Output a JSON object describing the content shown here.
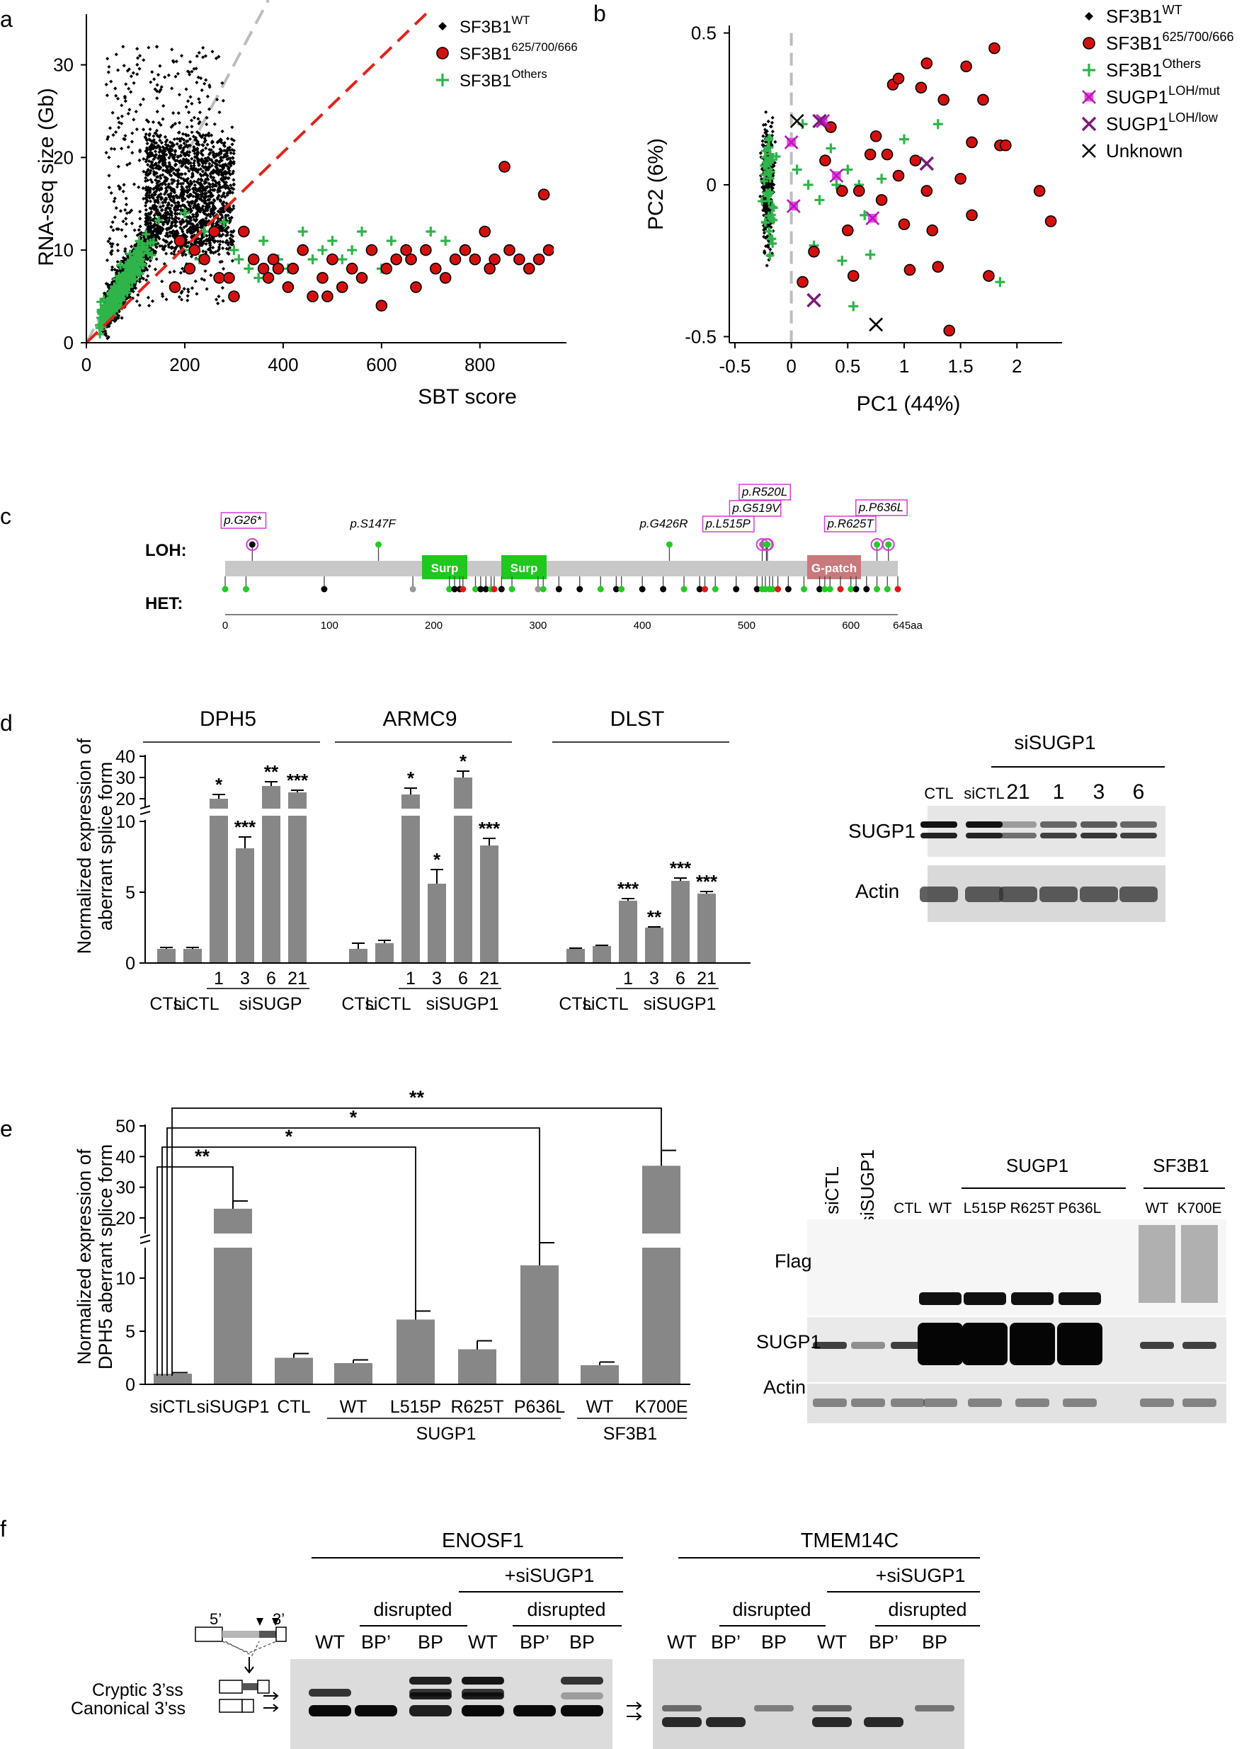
{
  "panels": {
    "a": {
      "letter": "a",
      "xlabel": "SBT score",
      "ylabel": "RNA-seq size (Gb)",
      "xticks": [
        "0",
        "200",
        "400",
        "600",
        "800"
      ],
      "yticks": [
        "0",
        "10",
        "20",
        "30"
      ],
      "legend": [
        {
          "base": "SF3B1",
          "sup": "WT",
          "marker": "diamond"
        },
        {
          "base": "SF3B1",
          "sup": "625/700/666",
          "marker": "circle"
        },
        {
          "base": "SF3B1",
          "sup": "Others",
          "marker": "plus"
        }
      ]
    },
    "b": {
      "letter": "b",
      "xlabel": "PC1 (44%)",
      "ylabel": "PC2 (6%)",
      "xticks": [
        "-0.5",
        "0",
        "0.5",
        "1",
        "1.5",
        "2"
      ],
      "yticks": [
        "-0.5",
        "0",
        "0.5"
      ],
      "legend": [
        {
          "base": "SF3B1",
          "sup": "WT",
          "marker": "diamond"
        },
        {
          "base": "SF3B1",
          "sup": "625/700/666",
          "marker": "circle"
        },
        {
          "base": "SF3B1",
          "sup": "Others",
          "marker": "plus"
        },
        {
          "base": "SUGP1",
          "sup": "LOH/mut",
          "marker": "xsq-magenta"
        },
        {
          "base": "SUGP1",
          "sup": "LOH/low",
          "marker": "x-purple"
        },
        {
          "base": "Unknown",
          "sup": "",
          "marker": "x-black"
        }
      ]
    },
    "c": {
      "letter": "c",
      "row_loh": "LOH:",
      "row_het": "HET:",
      "domains": [
        "Surp",
        "Surp",
        "G-patch"
      ],
      "axis_ticks": [
        "0",
        "100",
        "200",
        "300",
        "400",
        "500",
        "600",
        "645aa"
      ],
      "mutations": [
        "p.G26*",
        "p.S147F",
        "p.G426R",
        "p.L515P",
        "p.R520L",
        "p.G519V",
        "p.R625T",
        "p.P636L"
      ]
    },
    "d": {
      "letter": "d",
      "ylabel_1": "Normalized  expression of",
      "ylabel_2": "aberrant splice form",
      "yticks_low": [
        "0",
        "5",
        "10"
      ],
      "yticks_high": [
        "20",
        "30",
        "40"
      ],
      "genes": [
        "DPH5",
        "ARMC9",
        "DLST"
      ],
      "sublabels": [
        "1",
        "3",
        "6",
        "21"
      ],
      "group_labels": [
        "CTL",
        "siCTL",
        "siSUGP",
        "CTL",
        "siCTL",
        "siSUGP1",
        "CTL",
        "siCTL",
        "siSUGP1"
      ],
      "stars": [
        "*",
        "***",
        "**",
        "***",
        "*",
        "*",
        "*",
        "***",
        "***",
        "**",
        "***",
        "***"
      ],
      "blot_header": "siSUGP1",
      "blot_lanes": [
        "CTL",
        "siCTL",
        "21",
        "1",
        "3",
        "6"
      ],
      "blot_rows": [
        "SUGP1",
        "Actin"
      ]
    },
    "e": {
      "letter": "e",
      "ylabel_1": "Normalized  expression of",
      "ylabel_2": "DPH5 aberrant splice form",
      "yticks_low": [
        "0",
        "5",
        "10"
      ],
      "yticks_high": [
        "20",
        "30",
        "40",
        "50"
      ],
      "bar_labels": [
        "siCTL",
        "siSUGP1",
        "CTL",
        "WT",
        "L515P",
        "R625T",
        "P636L",
        "WT",
        "K700E"
      ],
      "group_sugp1": "SUGP1",
      "group_sf3b1": "SF3B1",
      "sig": [
        "**",
        "*",
        "*",
        "**"
      ],
      "blot_lanes_rot": [
        "siCTL",
        "siSUGP1"
      ],
      "blot_lanes": [
        "CTL",
        "WT",
        "L515P",
        "R625T",
        "P636L",
        "WT",
        "K700E"
      ],
      "blot_group_1": "SUGP1",
      "blot_group_2": "SF3B1",
      "blot_rows": [
        "Flag",
        "SUGP1",
        "Actin"
      ]
    },
    "f": {
      "letter": "f",
      "gene_1": "ENOSF1",
      "gene_2": "TMEM14C",
      "plus_label": "+siSUGP1",
      "disrupted": "disrupted",
      "lanes": [
        "WT",
        "BP’",
        "BP",
        "WT",
        "BP’",
        "BP"
      ],
      "five": "5’",
      "three": "3’",
      "cryptic": "Cryptic 3’ss",
      "canonical": "Canonical 3’ss"
    }
  },
  "chart_data": [
    {
      "id": "a",
      "type": "scatter",
      "title": "",
      "xlabel": "SBT score",
      "ylabel": "RNA-seq size (Gb)",
      "xlim": [
        0,
        950
      ],
      "ylim": [
        0,
        37
      ],
      "series": [
        {
          "name": "SF3B1 WT",
          "marker": "diamond",
          "color": "#000000",
          "n_points": 4200,
          "description_points": [
            [
              100,
              10
            ],
            [
              150,
              14
            ],
            [
              200,
              18
            ],
            [
              250,
              20
            ],
            [
              300,
              12
            ]
          ]
        },
        {
          "name": "SF3B1 625/700/666",
          "marker": "circle",
          "color": "#d4100f",
          "points": [
            [
              180,
              6
            ],
            [
              190,
              11
            ],
            [
              210,
              8
            ],
            [
              220,
              10
            ],
            [
              240,
              9
            ],
            [
              260,
              12
            ],
            [
              270,
              7
            ],
            [
              290,
              7
            ],
            [
              300,
              5
            ],
            [
              320,
              12
            ],
            [
              340,
              9
            ],
            [
              360,
              8
            ],
            [
              370,
              7
            ],
            [
              380,
              9
            ],
            [
              390,
              8
            ],
            [
              410,
              6
            ],
            [
              420,
              8
            ],
            [
              440,
              10
            ],
            [
              460,
              5
            ],
            [
              480,
              7
            ],
            [
              490,
              5
            ],
            [
              500,
              9
            ],
            [
              520,
              6
            ],
            [
              540,
              8
            ],
            [
              560,
              7
            ],
            [
              580,
              10
            ],
            [
              600,
              4
            ],
            [
              610,
              8
            ],
            [
              630,
              9
            ],
            [
              650,
              10
            ],
            [
              660,
              9
            ],
            [
              670,
              6
            ],
            [
              690,
              10
            ],
            [
              710,
              8
            ],
            [
              730,
              7
            ],
            [
              750,
              9
            ],
            [
              770,
              10
            ],
            [
              790,
              9
            ],
            [
              810,
              12
            ],
            [
              820,
              8
            ],
            [
              830,
              9
            ],
            [
              850,
              19
            ],
            [
              860,
              10
            ],
            [
              880,
              9
            ],
            [
              900,
              8
            ],
            [
              920,
              9
            ],
            [
              930,
              16
            ],
            [
              940,
              10
            ]
          ]
        },
        {
          "name": "SF3B1 Others",
          "marker": "plus",
          "color": "#2fb44a",
          "points": [
            [
              200,
              14
            ],
            [
              210,
              10
            ],
            [
              230,
              9
            ],
            [
              240,
              12
            ],
            [
              280,
              13
            ],
            [
              300,
              10
            ],
            [
              310,
              9
            ],
            [
              330,
              8
            ],
            [
              350,
              7
            ],
            [
              360,
              11
            ],
            [
              390,
              9
            ],
            [
              410,
              8
            ],
            [
              440,
              12
            ],
            [
              460,
              9
            ],
            [
              480,
              10
            ],
            [
              500,
              11
            ],
            [
              520,
              9
            ],
            [
              540,
              10
            ],
            [
              560,
              12
            ],
            [
              600,
              8
            ],
            [
              620,
              11
            ],
            [
              700,
              12
            ],
            [
              730,
              11
            ]
          ]
        }
      ],
      "reference_lines": [
        {
          "slope": 0.1,
          "style": "dashed",
          "color": "#b8b8b8"
        },
        {
          "slope": 0.075,
          "style": "dashed",
          "color": "#e2231a"
        }
      ]
    },
    {
      "id": "b",
      "type": "scatter",
      "title": "",
      "xlabel": "PC1 (44%)",
      "ylabel": "PC2 (6%)",
      "xlim": [
        -0.55,
        2.4
      ],
      "ylim": [
        -0.52,
        0.52
      ],
      "series": [
        {
          "name": "SF3B1 WT",
          "marker": "diamond",
          "color": "#000000",
          "n_points": 420,
          "x_range": [
            -0.3,
            -0.1
          ]
        },
        {
          "name": "SF3B1 625/700/666",
          "marker": "circle",
          "color": "#d4100f",
          "points": [
            [
              0.1,
              -0.32
            ],
            [
              0.2,
              -0.22
            ],
            [
              0.3,
              0.08
            ],
            [
              0.35,
              0.19
            ],
            [
              0.45,
              -0.02
            ],
            [
              0.5,
              -0.15
            ],
            [
              0.55,
              -0.3
            ],
            [
              0.6,
              -0.02
            ],
            [
              0.7,
              0.1
            ],
            [
              0.75,
              0.16
            ],
            [
              0.8,
              -0.05
            ],
            [
              0.85,
              0.1
            ],
            [
              0.9,
              0.33
            ],
            [
              0.95,
              0.03
            ],
            [
              1.0,
              -0.13
            ],
            [
              1.05,
              -0.28
            ],
            [
              1.1,
              0.08
            ],
            [
              1.15,
              0.32
            ],
            [
              1.2,
              -0.02
            ],
            [
              1.25,
              -0.15
            ],
            [
              1.3,
              -0.27
            ],
            [
              1.35,
              0.28
            ],
            [
              1.4,
              -0.48
            ],
            [
              1.5,
              0.02
            ],
            [
              1.55,
              0.39
            ],
            [
              1.6,
              -0.1
            ],
            [
              1.7,
              0.28
            ],
            [
              1.75,
              -0.3
            ],
            [
              1.8,
              0.45
            ],
            [
              1.85,
              0.13
            ],
            [
              1.9,
              0.13
            ],
            [
              2.2,
              -0.02
            ],
            [
              2.3,
              -0.12
            ],
            [
              0.95,
              0.35
            ],
            [
              1.2,
              0.4
            ],
            [
              1.6,
              0.14
            ]
          ]
        },
        {
          "name": "SF3B1 Others",
          "marker": "plus",
          "color": "#2fb44a",
          "points": [
            [
              0.05,
              0.05
            ],
            [
              0.15,
              0.0
            ],
            [
              0.25,
              -0.05
            ],
            [
              0.35,
              0.12
            ],
            [
              0.4,
              0.0
            ],
            [
              0.45,
              -0.25
            ],
            [
              0.5,
              0.05
            ],
            [
              0.6,
              0.0
            ],
            [
              0.65,
              -0.1
            ],
            [
              0.7,
              -0.23
            ],
            [
              0.8,
              0.02
            ],
            [
              1.0,
              0.15
            ],
            [
              1.3,
              0.2
            ],
            [
              1.85,
              -0.32
            ],
            [
              0.2,
              -0.2
            ],
            [
              0.1,
              0.2
            ],
            [
              0.55,
              -0.4
            ]
          ]
        },
        {
          "name": "SUGP1 LOH/mut",
          "marker": "x-square",
          "color": "#e633e6",
          "points": [
            [
              0.0,
              0.14
            ],
            [
              0.28,
              0.21
            ],
            [
              0.02,
              -0.07
            ],
            [
              0.4,
              0.03
            ],
            [
              0.72,
              -0.11
            ]
          ]
        },
        {
          "name": "SUGP1 LOH/low",
          "marker": "x",
          "color": "#7b1a7b",
          "points": [
            [
              0.25,
              0.21
            ],
            [
              1.2,
              0.07
            ],
            [
              0.2,
              -0.38
            ]
          ]
        },
        {
          "name": "Unknown",
          "marker": "x",
          "color": "#000000",
          "points": [
            [
              0.05,
              0.21
            ],
            [
              0.75,
              -0.46
            ]
          ]
        }
      ],
      "reference_lines": [
        {
          "x": 0,
          "style": "dashed",
          "color": "#b8b8b8"
        }
      ]
    },
    {
      "id": "d",
      "type": "bar",
      "title": "",
      "ylabel": "Normalized expression of aberrant splice form",
      "ylim_low": [
        0,
        10
      ],
      "ylim_high": [
        20,
        40
      ],
      "categories": [
        "CTL",
        "siCTL",
        "siSUGP1 1",
        "siSUGP1 3",
        "siSUGP1 6",
        "siSUGP1 21"
      ],
      "series": [
        {
          "name": "DPH5",
          "values": [
            1.0,
            1.0,
            20,
            8.1,
            26,
            23
          ],
          "errors": [
            0.1,
            0.1,
            2,
            0.8,
            2,
            1
          ]
        },
        {
          "name": "ARMC9",
          "values": [
            1.0,
            1.4,
            22,
            5.6,
            30,
            8.3
          ],
          "errors": [
            0.4,
            0.2,
            3,
            1.0,
            3,
            0.5
          ]
        },
        {
          "name": "DLST",
          "values": [
            1.0,
            1.2,
            4.4,
            2.5,
            5.8,
            4.9
          ],
          "errors": [
            0.05,
            0.05,
            0.15,
            0.05,
            0.2,
            0.15
          ]
        }
      ]
    },
    {
      "id": "e",
      "type": "bar",
      "title": "",
      "ylabel": "Normalized expression of DPH5 aberrant splice form",
      "ylim_low": [
        0,
        12
      ],
      "ylim_high": [
        20,
        50
      ],
      "categories": [
        "siCTL",
        "siSUGP1",
        "CTL",
        "SUGP1 WT",
        "SUGP1 L515P",
        "SUGP1 R625T",
        "SUGP1 P636L",
        "SF3B1 WT",
        "SF3B1 K700E"
      ],
      "values": [
        1.0,
        23,
        2.5,
        2.0,
        6.1,
        3.3,
        11.2,
        1.8,
        37
      ],
      "errors": [
        0.1,
        2.5,
        0.4,
        0.3,
        0.8,
        0.8,
        1.8,
        0.3,
        5
      ]
    }
  ]
}
